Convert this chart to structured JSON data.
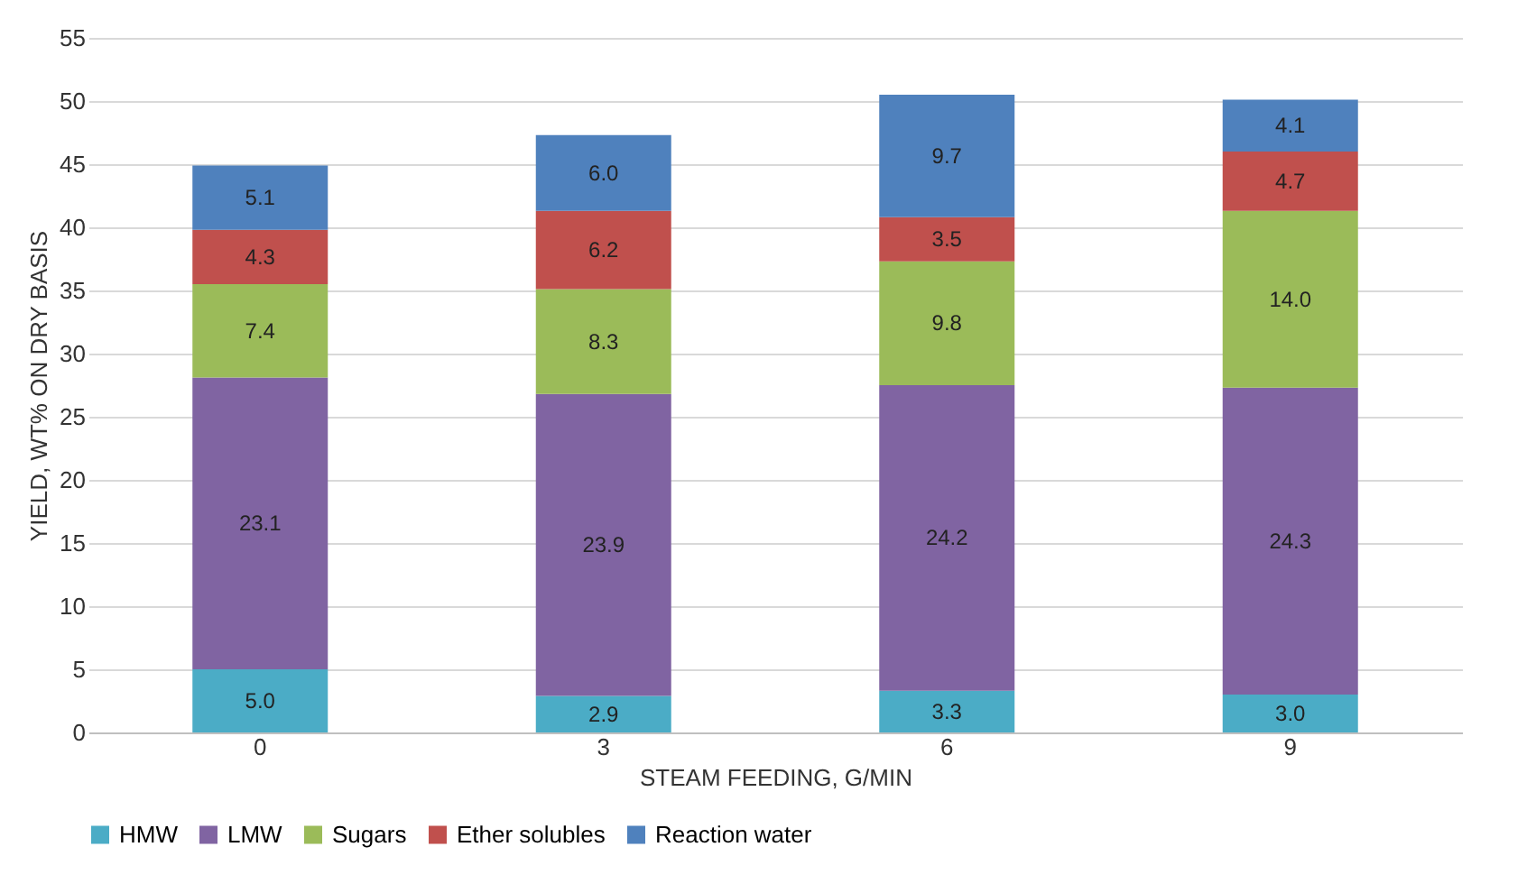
{
  "chart_data": {
    "type": "bar",
    "stacked": true,
    "xlabel": "STEAM FEEDING, G/MIN",
    "ylabel": "YIELD, WT% ON DRY BASIS",
    "categories": [
      "0",
      "3",
      "6",
      "9"
    ],
    "series": [
      {
        "name": "HMW",
        "color": "#4bacc6",
        "values": [
          5.0,
          2.9,
          3.3,
          3.0
        ],
        "value_labels": [
          "5.0",
          "2.9",
          "3.3",
          "3.0"
        ]
      },
      {
        "name": "LMW",
        "color": "#8064a2",
        "values": [
          23.1,
          23.9,
          24.2,
          24.3
        ],
        "value_labels": [
          "23.1",
          "23.9",
          "24.2",
          "24.3"
        ]
      },
      {
        "name": "Sugars",
        "color": "#9bbb59",
        "values": [
          7.4,
          8.3,
          9.8,
          14.0
        ],
        "value_labels": [
          "7.4",
          "8.3",
          "9.8",
          "14.0"
        ]
      },
      {
        "name": "Ether solubles",
        "color": "#c0504d",
        "values": [
          4.3,
          6.2,
          3.5,
          4.7
        ],
        "value_labels": [
          "4.3",
          "6.2",
          "3.5",
          "4.7"
        ]
      },
      {
        "name": "Reaction water",
        "color": "#4f81bd",
        "values": [
          5.1,
          6.0,
          9.7,
          4.1
        ],
        "value_labels": [
          "5.1",
          "6.0",
          "9.7",
          "4.1"
        ]
      }
    ],
    "ylim": [
      0,
      55
    ],
    "yticks": [
      0,
      5,
      10,
      15,
      20,
      25,
      30,
      35,
      40,
      45,
      50,
      55
    ],
    "grid": "y",
    "legend": "bottom"
  }
}
